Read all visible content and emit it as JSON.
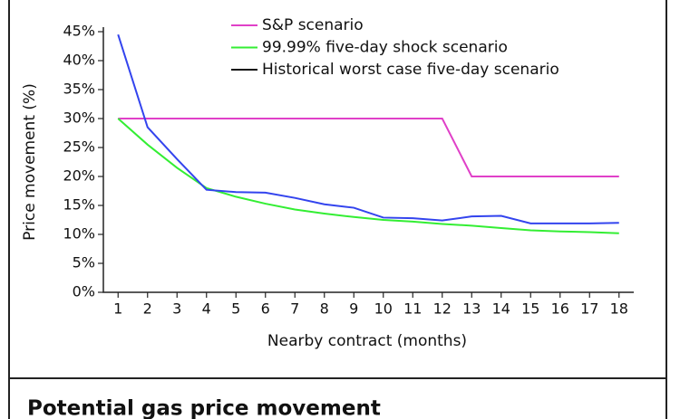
{
  "chart_data": {
    "type": "line",
    "title": "Potential gas price movement",
    "x_label": "Nearby contract (months)",
    "y_label": "Price movement (%)",
    "x": [
      1,
      2,
      3,
      4,
      5,
      6,
      7,
      8,
      9,
      10,
      11,
      12,
      13,
      14,
      15,
      16,
      17,
      18
    ],
    "xlim": [
      0.5,
      18.5
    ],
    "xticks": [
      1,
      2,
      3,
      4,
      5,
      6,
      7,
      8,
      9,
      10,
      11,
      12,
      13,
      14,
      15,
      16,
      17,
      18
    ],
    "ylim": [
      0,
      45
    ],
    "yticks": [
      {
        "value": 0,
        "label": "0%"
      },
      {
        "value": 5,
        "label": "5%"
      },
      {
        "value": 10,
        "label": "10%"
      },
      {
        "value": 15,
        "label": "15%"
      },
      {
        "value": 20,
        "label": "20%"
      },
      {
        "value": 25,
        "label": "25%"
      },
      {
        "value": 30,
        "label": "30%"
      },
      {
        "value": 35,
        "label": "35%"
      },
      {
        "value": 40,
        "label": "40%"
      },
      {
        "value": 45,
        "label": "45%"
      }
    ],
    "grid": false,
    "series": [
      {
        "name": "S&P scenario",
        "color": "#e040c8",
        "legend_color": "#e040c8",
        "values": [
          30,
          30,
          30,
          30,
          30,
          30,
          30,
          30,
          30,
          30,
          30,
          30,
          20,
          20,
          20,
          20,
          20,
          20
        ]
      },
      {
        "name": "99.99% five-day shock scenario",
        "color": "#33ee33",
        "legend_color": "#33ee33",
        "values": [
          30,
          25.5,
          21.5,
          18,
          16.5,
          15.3,
          14.3,
          13.6,
          13,
          12.5,
          12.2,
          11.8,
          11.5,
          11.1,
          10.7,
          10.5,
          10.4,
          10.2
        ]
      },
      {
        "name": "Historical worst case five-day scenario",
        "color": "#3344ee",
        "legend_color": "#111111",
        "values": [
          44.5,
          28.5,
          23,
          17.7,
          17.3,
          17.2,
          16.3,
          15.2,
          14.6,
          12.9,
          12.8,
          12.4,
          13.1,
          13.2,
          11.9,
          11.9,
          11.9,
          12
        ]
      }
    ]
  }
}
